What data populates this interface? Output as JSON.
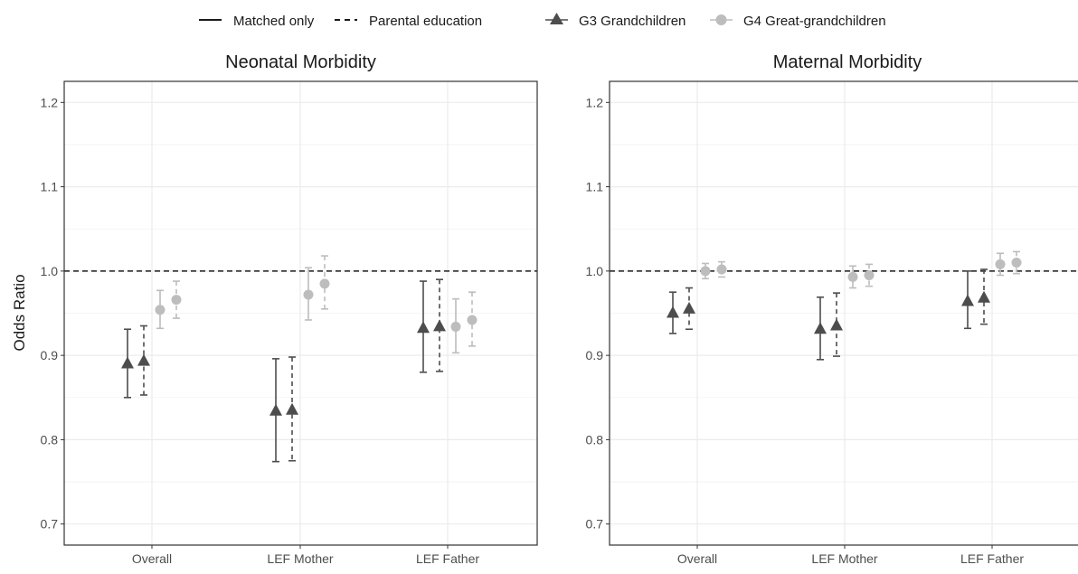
{
  "legend": {
    "linetypes": [
      {
        "label": "Matched only",
        "dash": "solid"
      },
      {
        "label": "Parental education",
        "dash": "dashed"
      }
    ],
    "groups": [
      {
        "label": "G3 Grandchildren",
        "shape": "triangle",
        "color": "#4d4d4d"
      },
      {
        "label": "G4 Great-grandchildren",
        "shape": "circle",
        "color": "#bdbdbd"
      }
    ]
  },
  "y_axis": {
    "title": "Odds Ratio",
    "ticks": [
      "0.7",
      "0.8",
      "0.9",
      "1.0",
      "1.1",
      "1.2"
    ]
  },
  "chart_data": [
    {
      "type": "scatter",
      "title": "Neonatal Morbidity",
      "categories": [
        "Overall",
        "LEF Mother",
        "LEF Father"
      ],
      "ylabel": "Odds Ratio",
      "ylim": [
        0.675,
        1.225
      ],
      "reference_line": 1.0,
      "grid": true,
      "series": [
        {
          "name": "G3 Grandchildren",
          "linetype": "Matched only",
          "estimate": [
            0.89,
            0.834,
            0.932
          ],
          "lower": [
            0.85,
            0.774,
            0.88
          ],
          "upper": [
            0.931,
            0.896,
            0.988
          ]
        },
        {
          "name": "G3 Grandchildren",
          "linetype": "Parental education",
          "estimate": [
            0.893,
            0.835,
            0.934
          ],
          "lower": [
            0.853,
            0.775,
            0.881
          ],
          "upper": [
            0.935,
            0.898,
            0.99
          ]
        },
        {
          "name": "G4 Great-grandchildren",
          "linetype": "Matched only",
          "estimate": [
            0.954,
            0.972,
            0.934
          ],
          "lower": [
            0.932,
            0.942,
            0.903
          ],
          "upper": [
            0.977,
            1.004,
            0.967
          ]
        },
        {
          "name": "G4 Great-grandchildren",
          "linetype": "Parental education",
          "estimate": [
            0.966,
            0.985,
            0.942
          ],
          "lower": [
            0.944,
            0.955,
            0.911
          ],
          "upper": [
            0.988,
            1.018,
            0.975
          ]
        }
      ]
    },
    {
      "type": "scatter",
      "title": "Maternal Morbidity",
      "categories": [
        "Overall",
        "LEF Mother",
        "LEF Father"
      ],
      "ylabel": "Odds Ratio",
      "ylim": [
        0.675,
        1.225
      ],
      "reference_line": 1.0,
      "grid": true,
      "series": [
        {
          "name": "G3 Grandchildren",
          "linetype": "Matched only",
          "estimate": [
            0.95,
            0.931,
            0.964
          ],
          "lower": [
            0.926,
            0.895,
            0.932
          ],
          "upper": [
            0.975,
            0.969,
            1.0
          ]
        },
        {
          "name": "G3 Grandchildren",
          "linetype": "Parental education",
          "estimate": [
            0.955,
            0.935,
            0.968
          ],
          "lower": [
            0.931,
            0.899,
            0.937
          ],
          "upper": [
            0.98,
            0.974,
            1.002
          ]
        },
        {
          "name": "G4 Great-grandchildren",
          "linetype": "Matched only",
          "estimate": [
            1.0,
            0.993,
            1.008
          ],
          "lower": [
            0.991,
            0.98,
            0.995
          ],
          "upper": [
            1.009,
            1.006,
            1.021
          ]
        },
        {
          "name": "G4 Great-grandchildren",
          "linetype": "Parental education",
          "estimate": [
            1.002,
            0.995,
            1.01
          ],
          "lower": [
            0.993,
            0.982,
            0.997
          ],
          "upper": [
            1.011,
            1.008,
            1.023
          ]
        }
      ]
    }
  ]
}
